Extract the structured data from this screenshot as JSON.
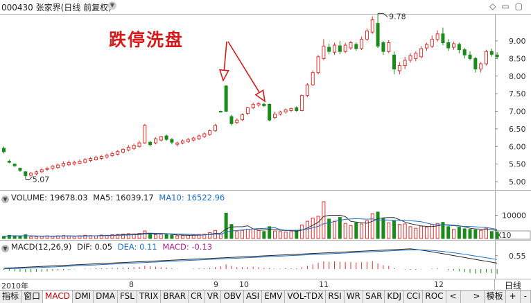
{
  "header": {
    "title": "000430 张家界(日线 前复权)",
    "caret_icon": "chevron-down-icon",
    "icons": [
      "diamond-icon",
      "minimize-icon",
      "maximize-icon"
    ],
    "glyphs": "◇ ▭ ▢"
  },
  "annotation": "跌停洗盘",
  "price_panel": {
    "y_ticks": [
      "9.00",
      "8.50",
      "8.00",
      "7.50",
      "7.00",
      "6.50",
      "6.00",
      "5.50",
      "5.00"
    ],
    "high_label": "9.78",
    "low_label": "5.07",
    "up_color": "#e03030",
    "down_color": "#1a8a1a"
  },
  "volume": {
    "title": "VOLUME: 19678.03",
    "ma5": "MA5: 16039.17",
    "ma10": "MA10: 16522.96",
    "tick": "10000",
    "unit": "X10",
    "ma5_color": "#333333",
    "ma10_color": "#1a6fc8"
  },
  "macd": {
    "title": "MACD(12,26,9)",
    "dif": "DIF: 0.05",
    "dea": "DEA: 0.11",
    "macd": "MACD: -0.13",
    "tick": "0.55",
    "dea_color": "#1a6fc8",
    "macd_color": "#b0208f"
  },
  "date_axis": {
    "labels": [
      "2010年",
      "8",
      "9",
      "10",
      "11",
      "12"
    ],
    "period": "日线"
  },
  "tabs": {
    "items": [
      "指标",
      "窗口",
      "MACD",
      "DMI",
      "DMA",
      "FSL",
      "TRIX",
      "BRAR",
      "CR",
      "VR",
      "OBV",
      "ASI",
      "EMV",
      "VOL-TDX",
      "RSI",
      "WR",
      "SAR",
      "KDJ",
      "CCI",
      "ROC"
    ],
    "active": "MACD",
    "nav_left": "<",
    "nav_right": ">",
    "template": "模板",
    "plus": "+",
    "minus": "-"
  },
  "candles": [
    [
      5.95,
      5.85,
      6.0,
      5.8
    ],
    [
      5.58,
      5.55,
      5.62,
      5.52
    ],
    [
      5.5,
      5.45,
      5.52,
      5.42
    ],
    [
      5.38,
      5.32,
      5.4,
      5.28
    ],
    [
      5.28,
      5.17,
      5.3,
      5.07
    ],
    [
      5.18,
      5.24,
      5.28,
      5.15
    ],
    [
      5.22,
      5.28,
      5.32,
      5.18
    ],
    [
      5.28,
      5.34,
      5.38,
      5.25
    ],
    [
      5.35,
      5.38,
      5.42,
      5.3
    ],
    [
      5.38,
      5.44,
      5.48,
      5.33
    ],
    [
      5.4,
      5.47,
      5.52,
      5.36
    ],
    [
      5.45,
      5.52,
      5.58,
      5.42
    ],
    [
      5.48,
      5.54,
      5.6,
      5.44
    ],
    [
      5.5,
      5.55,
      5.6,
      5.46
    ],
    [
      5.52,
      5.58,
      5.63,
      5.5
    ],
    [
      5.55,
      5.62,
      5.67,
      5.52
    ],
    [
      5.6,
      5.66,
      5.7,
      5.56
    ],
    [
      5.62,
      5.69,
      5.74,
      5.6
    ],
    [
      5.66,
      5.72,
      5.76,
      5.62
    ],
    [
      5.7,
      5.75,
      5.8,
      5.66
    ],
    [
      5.74,
      5.8,
      5.86,
      5.7
    ],
    [
      5.78,
      5.86,
      5.9,
      5.74
    ],
    [
      5.84,
      5.92,
      5.96,
      5.8
    ],
    [
      5.9,
      5.98,
      6.04,
      5.86
    ],
    [
      5.94,
      6.03,
      6.08,
      5.9
    ],
    [
      6.0,
      6.1,
      6.16,
      5.96
    ],
    [
      6.1,
      6.6,
      6.64,
      6.08
    ],
    [
      6.12,
      6.05,
      6.16,
      6.0
    ],
    [
      6.1,
      6.22,
      6.26,
      6.06
    ],
    [
      6.18,
      6.28,
      6.3,
      6.14
    ],
    [
      6.3,
      6.2,
      6.34,
      6.16
    ],
    [
      6.2,
      6.12,
      6.24,
      6.06
    ],
    [
      6.06,
      6.1,
      6.14,
      6.0
    ],
    [
      6.1,
      6.16,
      6.2,
      6.06
    ],
    [
      6.14,
      6.2,
      6.24,
      6.1
    ],
    [
      6.18,
      6.24,
      6.28,
      6.14
    ],
    [
      6.22,
      6.3,
      6.34,
      6.18
    ],
    [
      6.28,
      6.36,
      6.4,
      6.24
    ],
    [
      6.34,
      6.45,
      6.48,
      6.3
    ],
    [
      6.45,
      6.6,
      6.64,
      6.42
    ],
    [
      7.0,
      6.98,
      7.02,
      6.96
    ],
    [
      7.72,
      7.0,
      7.74,
      6.98
    ],
    [
      6.85,
      6.65,
      6.9,
      6.6
    ],
    [
      6.68,
      6.75,
      6.8,
      6.64
    ],
    [
      6.76,
      6.9,
      6.94,
      6.72
    ],
    [
      6.94,
      7.1,
      7.12,
      6.9
    ],
    [
      7.1,
      7.2,
      7.24,
      7.06
    ],
    [
      7.18,
      7.22,
      7.26,
      7.12
    ],
    [
      7.2,
      7.16,
      7.24,
      7.12
    ],
    [
      7.2,
      6.75,
      7.22,
      6.72
    ],
    [
      6.82,
      6.92,
      6.98,
      6.78
    ],
    [
      6.92,
      6.98,
      7.02,
      6.88
    ],
    [
      6.98,
      7.04,
      7.08,
      6.94
    ],
    [
      7.02,
      7.08,
      7.1,
      6.98
    ],
    [
      7.1,
      7.02,
      7.14,
      6.98
    ],
    [
      7.02,
      7.45,
      7.48,
      7.0
    ],
    [
      7.45,
      7.75,
      7.8,
      7.4
    ],
    [
      7.75,
      8.1,
      8.16,
      7.72
    ],
    [
      8.1,
      8.55,
      8.6,
      8.05
    ],
    [
      8.5,
      8.85,
      9.05,
      8.45
    ],
    [
      8.82,
      8.7,
      8.92,
      8.62
    ],
    [
      8.68,
      8.88,
      8.95,
      8.6
    ],
    [
      8.86,
      8.7,
      9.0,
      8.62
    ],
    [
      8.7,
      8.88,
      8.95,
      8.65
    ],
    [
      8.8,
      8.95,
      9.0,
      8.75
    ],
    [
      8.9,
      8.78,
      8.96,
      8.72
    ],
    [
      8.78,
      9.05,
      9.12,
      8.74
    ],
    [
      9.05,
      9.28,
      9.35,
      9.0
    ],
    [
      9.25,
      9.6,
      9.7,
      9.2
    ],
    [
      9.5,
      8.85,
      9.78,
      8.8
    ],
    [
      8.95,
      8.7,
      9.0,
      8.6
    ],
    [
      8.7,
      8.95,
      9.02,
      8.65
    ],
    [
      8.6,
      8.2,
      8.7,
      8.05
    ],
    [
      8.15,
      8.3,
      8.4,
      8.05
    ],
    [
      8.3,
      8.45,
      8.55,
      8.2
    ],
    [
      8.45,
      8.58,
      8.65,
      8.38
    ],
    [
      8.5,
      8.65,
      8.7,
      8.42
    ],
    [
      8.55,
      8.78,
      8.85,
      8.5
    ],
    [
      8.8,
      8.9,
      8.95,
      8.72
    ],
    [
      8.85,
      9.05,
      9.15,
      8.8
    ],
    [
      9.05,
      9.2,
      9.3,
      8.98
    ],
    [
      9.2,
      8.95,
      9.38,
      8.88
    ],
    [
      8.95,
      8.8,
      9.05,
      8.72
    ],
    [
      8.82,
      8.92,
      8.98,
      8.75
    ],
    [
      8.9,
      8.75,
      8.95,
      8.65
    ],
    [
      8.75,
      8.6,
      8.8,
      8.5
    ],
    [
      8.6,
      8.5,
      8.7,
      8.45
    ],
    [
      8.5,
      8.2,
      8.55,
      8.1
    ],
    [
      8.2,
      8.35,
      8.4,
      8.1
    ],
    [
      8.35,
      8.7,
      8.75,
      8.3
    ],
    [
      8.7,
      8.62,
      8.78,
      8.55
    ],
    [
      8.6,
      8.55,
      8.68,
      8.5
    ]
  ],
  "volumes": [
    [
      400,
      0
    ],
    [
      600,
      0
    ],
    [
      500,
      0
    ],
    [
      450,
      0
    ],
    [
      700,
      0
    ],
    [
      300,
      1
    ],
    [
      350,
      1
    ],
    [
      400,
      1
    ],
    [
      500,
      1
    ],
    [
      450,
      1
    ],
    [
      500,
      1
    ],
    [
      550,
      1
    ],
    [
      450,
      1
    ],
    [
      400,
      1
    ],
    [
      500,
      1
    ],
    [
      600,
      1
    ],
    [
      550,
      1
    ],
    [
      500,
      1
    ],
    [
      650,
      1
    ],
    [
      600,
      1
    ],
    [
      700,
      1
    ],
    [
      750,
      1
    ],
    [
      800,
      1
    ],
    [
      900,
      1
    ],
    [
      850,
      1
    ],
    [
      950,
      1
    ],
    [
      1400,
      1
    ],
    [
      900,
      0
    ],
    [
      700,
      1
    ],
    [
      800,
      1
    ],
    [
      750,
      0
    ],
    [
      600,
      0
    ],
    [
      500,
      1
    ],
    [
      550,
      1
    ],
    [
      600,
      1
    ],
    [
      700,
      1
    ],
    [
      750,
      1
    ],
    [
      800,
      1
    ],
    [
      1100,
      1
    ],
    [
      1500,
      1
    ],
    [
      800,
      1
    ],
    [
      4700,
      0
    ],
    [
      2600,
      0
    ],
    [
      1300,
      1
    ],
    [
      1500,
      1
    ],
    [
      1700,
      1
    ],
    [
      1800,
      1
    ],
    [
      1500,
      1
    ],
    [
      1300,
      0
    ],
    [
      2200,
      0
    ],
    [
      1400,
      1
    ],
    [
      1300,
      1
    ],
    [
      1200,
      1
    ],
    [
      1300,
      1
    ],
    [
      1500,
      0
    ],
    [
      2500,
      1
    ],
    [
      3200,
      1
    ],
    [
      3800,
      1
    ],
    [
      4100,
      1
    ],
    [
      6800,
      1
    ],
    [
      3600,
      0
    ],
    [
      3200,
      1
    ],
    [
      3900,
      0
    ],
    [
      2800,
      1
    ],
    [
      2400,
      1
    ],
    [
      2900,
      0
    ],
    [
      2700,
      1
    ],
    [
      3300,
      1
    ],
    [
      4600,
      1
    ],
    [
      4900,
      0
    ],
    [
      3700,
      0
    ],
    [
      2900,
      1
    ],
    [
      3300,
      0
    ],
    [
      2600,
      1
    ],
    [
      2700,
      1
    ],
    [
      2200,
      1
    ],
    [
      1900,
      1
    ],
    [
      2300,
      1
    ],
    [
      2100,
      1
    ],
    [
      2600,
      1
    ],
    [
      2800,
      1
    ],
    [
      3000,
      0
    ],
    [
      2200,
      0
    ],
    [
      1700,
      1
    ],
    [
      2100,
      0
    ],
    [
      1800,
      0
    ],
    [
      1700,
      0
    ],
    [
      1600,
      0
    ],
    [
      1500,
      1
    ],
    [
      1900,
      1
    ],
    [
      1300,
      0
    ],
    [
      1200,
      0
    ]
  ],
  "macd_hist": [
    -0.02,
    -0.05,
    -0.06,
    -0.07,
    -0.08,
    -0.08,
    -0.07,
    -0.07,
    -0.06,
    -0.05,
    -0.04,
    -0.03,
    -0.02,
    -0.01,
    0.0,
    0.01,
    0.01,
    0.02,
    0.02,
    0.02,
    0.03,
    0.03,
    0.04,
    0.04,
    0.05,
    0.06,
    0.08,
    0.07,
    0.06,
    0.05,
    0.04,
    0.02,
    0.01,
    0.0,
    0.0,
    0.01,
    0.02,
    0.02,
    0.03,
    0.05,
    0.07,
    0.12,
    0.08,
    0.05,
    0.05,
    0.05,
    0.06,
    0.05,
    0.03,
    0.02,
    0.01,
    0.01,
    0.02,
    0.02,
    0.02,
    0.05,
    0.08,
    0.12,
    0.16,
    0.2,
    0.19,
    0.2,
    0.19,
    0.18,
    0.18,
    0.17,
    0.18,
    0.19,
    0.21,
    0.15,
    0.1,
    0.08,
    0.02,
    0.0,
    -0.01,
    -0.02,
    -0.02,
    -0.01,
    0.0,
    0.01,
    0.02,
    0.0,
    -0.03,
    -0.04,
    -0.06,
    -0.08,
    -0.1,
    -0.12,
    -0.11,
    -0.09,
    -0.11,
    -0.13
  ]
}
